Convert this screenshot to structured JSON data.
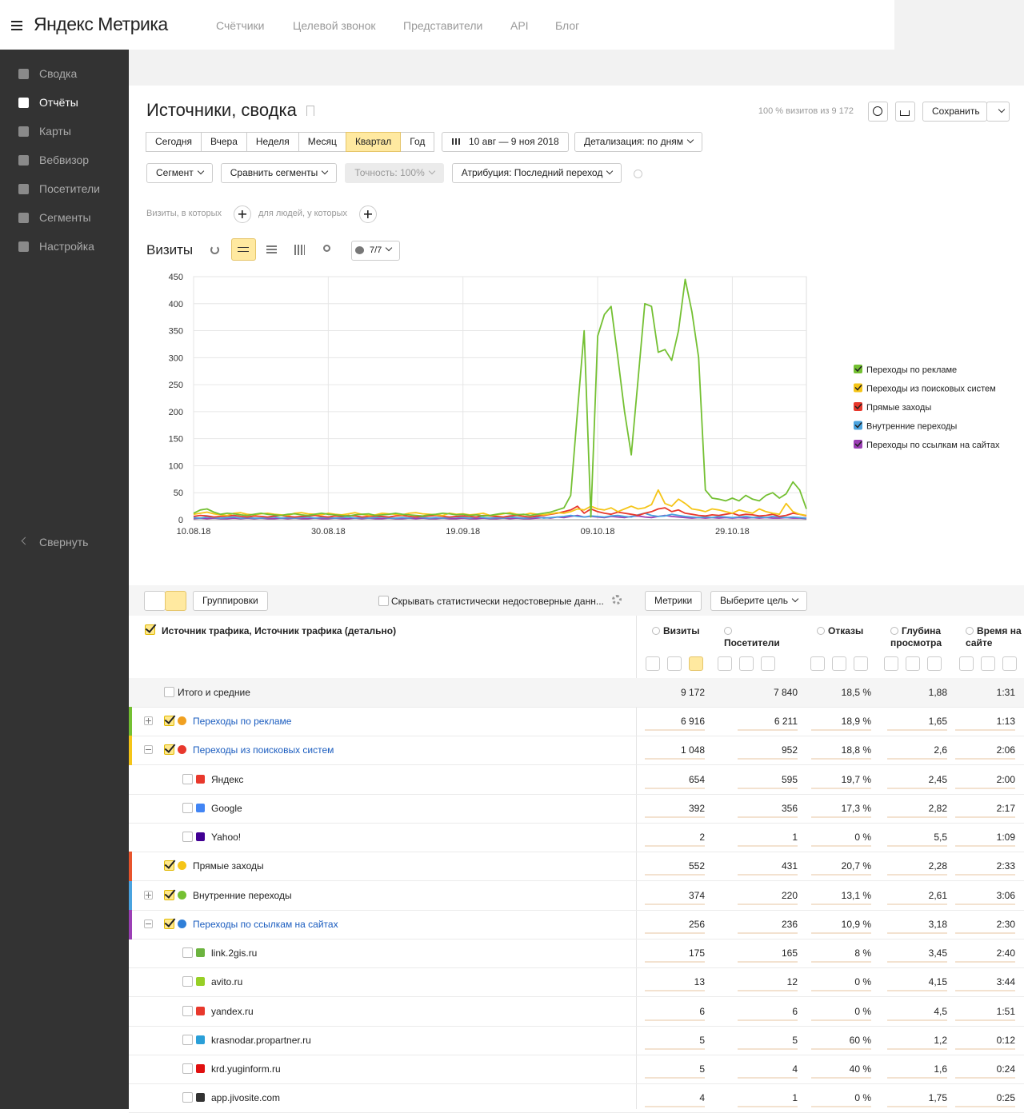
{
  "header": {
    "logo": "Яндекс Метрика",
    "nav": [
      "Счётчики",
      "Целевой звонок",
      "Представители",
      "API",
      "Блог"
    ]
  },
  "sidebar": {
    "items": [
      "Сводка",
      "Отчёты",
      "Карты",
      "Вебвизор",
      "Посетители",
      "Сегменты",
      "Настройка"
    ],
    "active": 1,
    "collapse": "Свернуть"
  },
  "report": {
    "title": "Источники, сводка",
    "sample": "100 % визитов из 9 172",
    "save": "Сохранить",
    "periods": [
      "Сегодня",
      "Вчера",
      "Неделя",
      "Месяц",
      "Квартал",
      "Год"
    ],
    "active_period": 4,
    "date_range": "10 авг — 9 ноя 2018",
    "detail": "Детализация: по дням",
    "filters": [
      "Сегмент",
      "Сравнить сегменты",
      "Точность: 100%",
      "Атрибуция: Последний переход"
    ],
    "disabled_filter": 2,
    "condition_visits": "Визиты, в которых",
    "condition_people": "для людей, у которых",
    "chart_heading": "Визиты",
    "series_count": "7/7"
  },
  "chart_data": {
    "type": "line",
    "categories": [
      "10.08.18",
      null,
      null,
      null,
      null,
      null,
      null,
      null,
      null,
      null,
      null,
      null,
      null,
      null,
      null,
      null,
      null,
      null,
      null,
      null,
      "30.08.18",
      null,
      null,
      null,
      null,
      null,
      null,
      null,
      null,
      null,
      null,
      null,
      null,
      null,
      null,
      null,
      null,
      null,
      null,
      null,
      "19.09.18",
      null,
      null,
      null,
      null,
      null,
      null,
      null,
      null,
      null,
      null,
      null,
      null,
      null,
      null,
      null,
      null,
      null,
      null,
      null,
      "09.10.18",
      null,
      null,
      null,
      null,
      null,
      null,
      null,
      null,
      null,
      null,
      null,
      null,
      null,
      null,
      null,
      null,
      null,
      null,
      null,
      "29.10.18",
      null,
      null,
      null,
      null,
      null,
      null,
      null,
      null,
      null,
      null,
      null
    ],
    "ylim": [
      0,
      450
    ],
    "yticks": [
      0,
      50,
      100,
      150,
      200,
      250,
      300,
      350,
      400,
      450
    ],
    "grid": true,
    "legend": "right",
    "series": [
      {
        "name": "Переходы по рекламе",
        "color": "#74c032",
        "values": [
          12,
          18,
          20,
          14,
          10,
          12,
          11,
          9,
          8,
          10,
          12,
          10,
          9,
          8,
          10,
          11,
          9,
          8,
          10,
          12,
          10,
          9,
          8,
          7,
          9,
          10,
          11,
          8,
          9,
          10,
          12,
          10,
          9,
          8,
          7,
          9,
          10,
          12,
          11,
          9,
          10,
          8,
          9,
          7,
          8,
          10,
          12,
          11,
          9,
          10,
          8,
          10,
          12,
          14,
          18,
          22,
          45,
          200,
          350,
          5,
          340,
          380,
          395,
          300,
          200,
          120,
          260,
          400,
          395,
          310,
          315,
          295,
          350,
          445,
          385,
          300,
          55,
          40,
          38,
          35,
          40,
          35,
          45,
          38,
          35,
          45,
          50,
          40,
          48,
          70,
          55,
          20
        ]
      },
      {
        "name": "Переходы из поисковых систем",
        "color": "#f5c518",
        "values": [
          10,
          12,
          14,
          11,
          9,
          8,
          12,
          13,
          10,
          9,
          11,
          12,
          10,
          9,
          8,
          12,
          13,
          11,
          10,
          9,
          12,
          10,
          9,
          11,
          13,
          10,
          8,
          9,
          12,
          11,
          10,
          9,
          12,
          13,
          11,
          10,
          9,
          8,
          12,
          10,
          11,
          9,
          10,
          12,
          8,
          9,
          11,
          13,
          10,
          9,
          12,
          10,
          9,
          11,
          13,
          12,
          15,
          20,
          18,
          25,
          20,
          18,
          22,
          15,
          20,
          25,
          20,
          22,
          28,
          55,
          30,
          25,
          38,
          30,
          20,
          18,
          15,
          20,
          18,
          15,
          12,
          18,
          15,
          12,
          20,
          15,
          12,
          10,
          30,
          15,
          10,
          8
        ]
      },
      {
        "name": "Прямые заходы",
        "color": "#e8382c",
        "values": [
          6,
          8,
          7,
          5,
          6,
          7,
          8,
          6,
          5,
          7,
          6,
          5,
          7,
          8,
          6,
          5,
          6,
          7,
          8,
          6,
          5,
          7,
          6,
          8,
          7,
          5,
          6,
          7,
          6,
          5,
          7,
          8,
          6,
          5,
          6,
          7,
          8,
          6,
          5,
          6,
          7,
          6,
          5,
          8,
          7,
          6,
          5,
          7,
          8,
          6,
          5,
          7,
          8,
          10,
          12,
          15,
          18,
          25,
          12,
          20,
          15,
          12,
          10,
          14,
          12,
          10,
          8,
          12,
          15,
          20,
          22,
          15,
          18,
          12,
          10,
          8,
          7,
          9,
          8,
          10,
          12,
          8,
          10,
          9,
          7,
          8,
          10,
          6,
          8,
          12,
          10,
          7
        ]
      },
      {
        "name": "Внутренние переходы",
        "color": "#4aa3df",
        "values": [
          4,
          3,
          5,
          4,
          3,
          4,
          5,
          3,
          4,
          3,
          3,
          4,
          5,
          3,
          4,
          3,
          4,
          5,
          3,
          4,
          4,
          3,
          4,
          5,
          3,
          4,
          3,
          4,
          5,
          3,
          3,
          4,
          3,
          5,
          4,
          3,
          4,
          3,
          4,
          5,
          4,
          3,
          5,
          4,
          3,
          4,
          3,
          5,
          4,
          3,
          4,
          5,
          3,
          4,
          5,
          6,
          8,
          6,
          5,
          7,
          6,
          5,
          7,
          8,
          6,
          5,
          9,
          12,
          8,
          6,
          7,
          10,
          8,
          6,
          5,
          4,
          5,
          4,
          6,
          5,
          4,
          5,
          6,
          4,
          5,
          4,
          6,
          5,
          4,
          5,
          4,
          3
        ]
      },
      {
        "name": "Переходы по ссылкам на сайтах",
        "color": "#9b3fb5",
        "values": [
          2,
          3,
          2,
          3,
          2,
          2,
          3,
          2,
          3,
          2,
          3,
          2,
          2,
          3,
          2,
          3,
          2,
          2,
          3,
          2,
          2,
          3,
          2,
          2,
          3,
          2,
          3,
          2,
          2,
          3,
          2,
          2,
          3,
          2,
          3,
          2,
          2,
          3,
          2,
          2,
          3,
          2,
          2,
          3,
          2,
          2,
          3,
          2,
          3,
          2,
          2,
          3,
          4,
          3,
          5,
          4,
          6,
          8,
          5,
          6,
          5,
          4,
          6,
          5,
          4,
          6,
          7,
          5,
          4,
          6,
          8,
          6,
          5,
          4,
          3,
          4,
          3,
          4,
          3,
          4,
          3,
          4,
          3,
          4,
          3,
          4,
          3,
          3,
          4,
          3,
          3,
          2
        ]
      }
    ]
  },
  "table": {
    "groupings": "Группировки",
    "hide_unreliable": "Скрывать статистически недостоверные данн...",
    "metrics": "Метрики",
    "goal": "Выберите цель",
    "dimension": "Источник трафика, Источник трафика (детально)",
    "columns": [
      "Визиты",
      "Посетители",
      "Отказы",
      "Глубина просмотра",
      "Время на сайте"
    ],
    "totals": {
      "label": "Итого и средние",
      "values": [
        "9 172",
        "7 840",
        "18,5 %",
        "1,88",
        "1:31"
      ]
    },
    "rows": [
      {
        "label": "Переходы по рекламе",
        "level": 0,
        "expand": "plus",
        "color": "#74c032",
        "icon": "#f0a020",
        "link": true,
        "checked": true,
        "values": [
          "6 916",
          "6 211",
          "18,9 %",
          "1,65",
          "1:13"
        ]
      },
      {
        "label": "Переходы из поисковых систем",
        "level": 0,
        "expand": "minus",
        "color": "#f5c518",
        "icon": "#e8382c",
        "link": true,
        "checked": true,
        "values": [
          "1 048",
          "952",
          "18,8 %",
          "2,6",
          "2:06"
        ]
      },
      {
        "label": "Яндекс",
        "level": 1,
        "icon": "#e8382c",
        "checked": false,
        "values": [
          "654",
          "595",
          "19,7 %",
          "2,45",
          "2:00"
        ]
      },
      {
        "label": "Google",
        "level": 1,
        "icon": "#4285f4",
        "checked": false,
        "values": [
          "392",
          "356",
          "17,3 %",
          "2,82",
          "2:17"
        ]
      },
      {
        "label": "Yahoo!",
        "level": 1,
        "icon": "#410093",
        "checked": false,
        "values": [
          "2",
          "1",
          "0 %",
          "5,5",
          "1:09"
        ]
      },
      {
        "label": "Прямые заходы",
        "level": 0,
        "color": "#e8542c",
        "icon": "#f5c518",
        "checked": true,
        "values": [
          "552",
          "431",
          "20,7 %",
          "2,28",
          "2:33"
        ]
      },
      {
        "label": "Внутренние переходы",
        "level": 0,
        "expand": "plus",
        "color": "#4aa3df",
        "icon": "#74c032",
        "checked": true,
        "values": [
          "374",
          "220",
          "13,1 %",
          "2,61",
          "3:06"
        ]
      },
      {
        "label": "Переходы по ссылкам на сайтах",
        "level": 0,
        "expand": "minus",
        "color": "#9b3fb5",
        "icon": "#2f7fd8",
        "link": true,
        "checked": true,
        "values": [
          "256",
          "236",
          "10,9 %",
          "3,18",
          "2:30"
        ]
      },
      {
        "label": "link.2gis.ru",
        "level": 1,
        "icon": "#6cb33f",
        "checked": false,
        "values": [
          "175",
          "165",
          "8 %",
          "3,45",
          "2:40"
        ]
      },
      {
        "label": "avito.ru",
        "level": 1,
        "icon": "#97cf26",
        "checked": false,
        "values": [
          "13",
          "12",
          "0 %",
          "4,15",
          "3:44"
        ]
      },
      {
        "label": "yandex.ru",
        "level": 1,
        "icon": "#e8382c",
        "checked": false,
        "values": [
          "6",
          "6",
          "0 %",
          "4,5",
          "1:51"
        ]
      },
      {
        "label": "krasnodar.propartner.ru",
        "level": 1,
        "icon": "#2a9fd8",
        "checked": false,
        "values": [
          "5",
          "5",
          "60 %",
          "1,2",
          "0:12"
        ]
      },
      {
        "label": "krd.yuginform.ru",
        "level": 1,
        "icon": "#e01010",
        "checked": false,
        "values": [
          "5",
          "4",
          "40 %",
          "1,6",
          "0:24"
        ]
      },
      {
        "label": "app.jivosite.com",
        "level": 1,
        "icon": "#333333",
        "checked": false,
        "values": [
          "4",
          "1",
          "0 %",
          "1,75",
          "0:25"
        ]
      }
    ]
  }
}
